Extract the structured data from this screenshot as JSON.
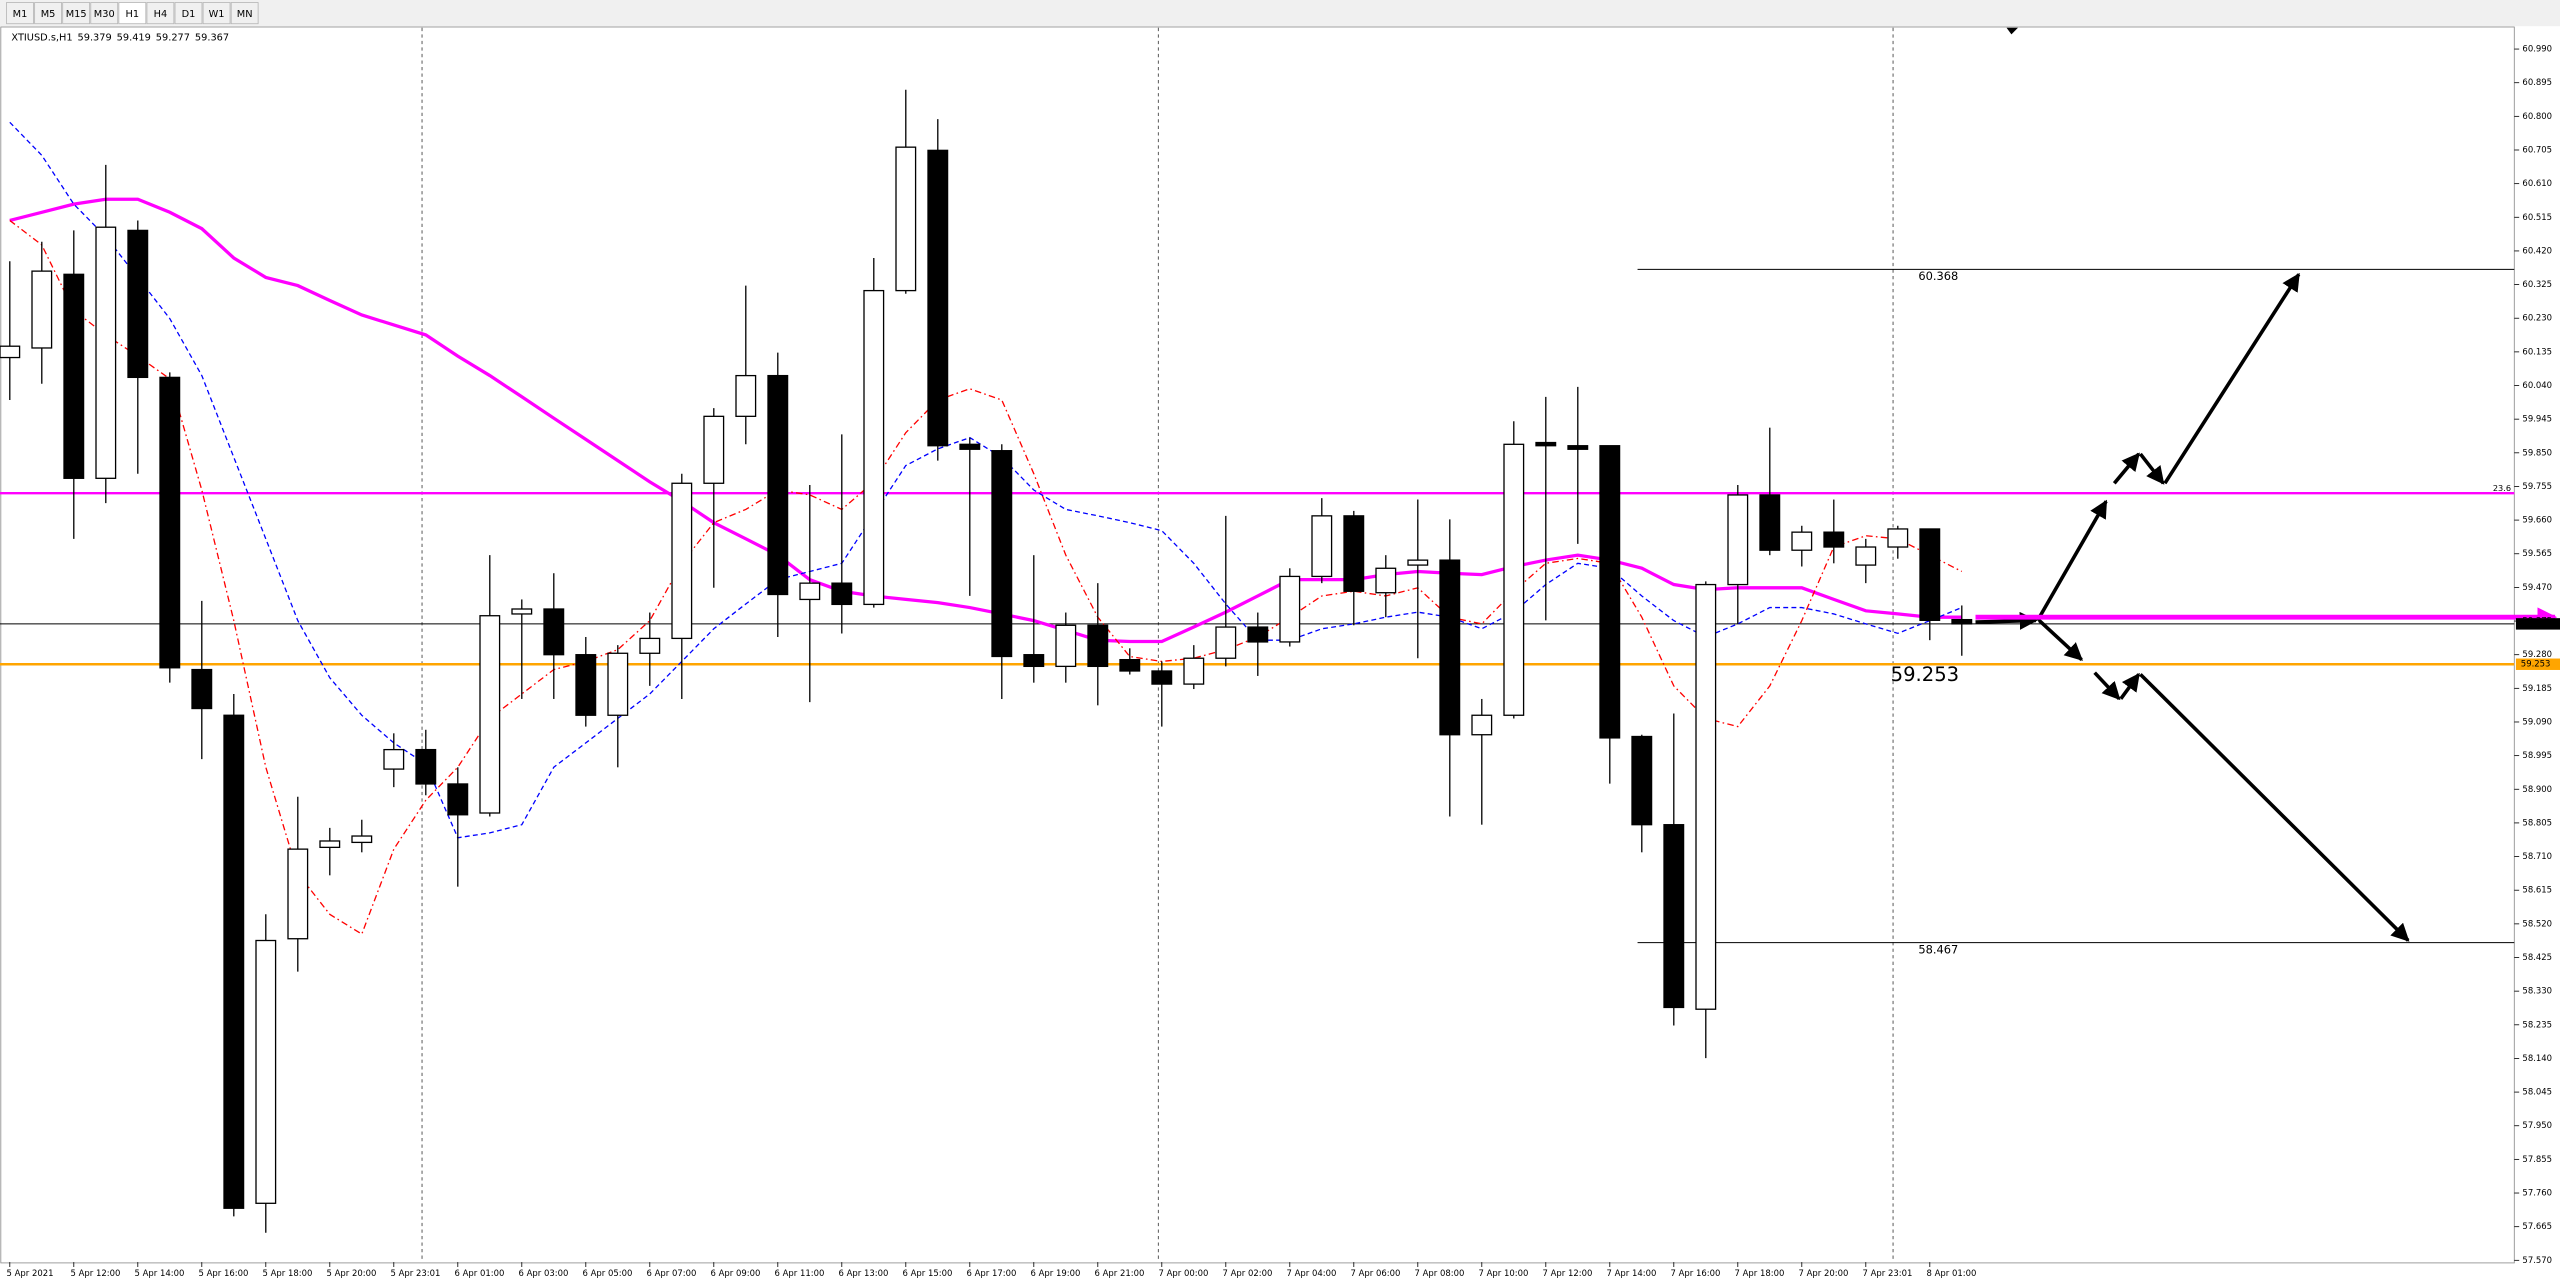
{
  "toolbar": {
    "timeframes": [
      "M1",
      "M5",
      "M15",
      "M30",
      "H1",
      "H4",
      "D1",
      "W1",
      "MN"
    ],
    "active": 4
  },
  "chart_data": {
    "type": "candlestick",
    "symbol": "XTIUSD.s,H1",
    "categories": [
      "5 Apr 2021",
      null,
      "5 Apr 12:00",
      null,
      "5 Apr 14:00",
      null,
      "5 Apr 16:00",
      null,
      "5 Apr 18:00",
      null,
      "5 Apr 20:00",
      null,
      "5 Apr 23:01",
      null,
      "6 Apr 01:00",
      null,
      "6 Apr 03:00",
      null,
      "6 Apr 05:00",
      null,
      "6 Apr 07:00",
      null,
      "6 Apr 09:00",
      null,
      "6 Apr 11:00",
      null,
      "6 Apr 13:00",
      null,
      "6 Apr 15:00",
      null,
      "6 Apr 17:00",
      null,
      "6 Apr 19:00",
      null,
      "6 Apr 21:00",
      null,
      "7 Apr 00:00",
      null,
      "7 Apr 02:00",
      null,
      "7 Apr 04:00",
      null,
      "7 Apr 06:00",
      null,
      "7 Apr 08:00",
      null,
      "7 Apr 10:00",
      null,
      "7 Apr 12:00",
      null,
      "7 Apr 14:00",
      null,
      "7 Apr 16:00",
      null,
      "7 Apr 18:00",
      null,
      "7 Apr 20:00",
      null,
      "7 Apr 23:01",
      null,
      "8 Apr 01:00",
      null
    ],
    "open": [
      60.119,
      60.146,
      60.354,
      59.778,
      60.478,
      60.063,
      59.238,
      59.109,
      57.731,
      58.478,
      58.736,
      58.75,
      58.957,
      59.012,
      58.915,
      58.833,
      59.395,
      59.409,
      59.28,
      59.109,
      59.284,
      59.326,
      59.764,
      59.953,
      60.068,
      59.436,
      59.482,
      59.422,
      60.308,
      60.704,
      59.874,
      59.856,
      59.28,
      59.247,
      59.363,
      59.266,
      59.234,
      59.197,
      59.27,
      59.358,
      59.316,
      59.501,
      59.672,
      59.455,
      59.533,
      59.547,
      59.054,
      59.109,
      59.879,
      59.87,
      59.87,
      59.049,
      58.8,
      58.279,
      59.478,
      59.731,
      59.575,
      59.626,
      59.533,
      59.584,
      59.635,
      59.379
    ],
    "high": [
      60.391,
      60.446,
      60.478,
      60.663,
      60.506,
      60.077,
      59.432,
      59.169,
      58.547,
      58.879,
      58.791,
      58.814,
      59.058,
      59.068,
      58.962,
      59.561,
      59.436,
      59.51,
      59.33,
      59.307,
      59.399,
      59.791,
      59.976,
      60.322,
      60.133,
      59.759,
      59.902,
      60.4,
      60.875,
      60.792,
      59.893,
      59.874,
      59.561,
      59.399,
      59.482,
      59.298,
      59.261,
      59.307,
      59.672,
      59.399,
      59.524,
      59.722,
      59.686,
      59.561,
      59.718,
      59.662,
      59.155,
      59.939,
      60.008,
      60.036,
      59.87,
      59.054,
      59.114,
      59.487,
      59.759,
      59.921,
      59.644,
      59.718,
      59.607,
      59.644,
      59.635,
      59.419
    ],
    "low": [
      59.999,
      60.045,
      59.607,
      59.708,
      59.791,
      59.201,
      58.985,
      57.694,
      57.648,
      58.385,
      58.657,
      58.722,
      58.906,
      58.883,
      58.625,
      58.823,
      59.155,
      59.155,
      59.077,
      58.962,
      59.192,
      59.155,
      59.469,
      59.874,
      59.33,
      59.146,
      59.34,
      59.413,
      60.299,
      59.828,
      59.446,
      59.155,
      59.201,
      59.201,
      59.137,
      59.224,
      59.077,
      59.183,
      59.247,
      59.22,
      59.303,
      59.482,
      59.363,
      59.386,
      59.27,
      58.823,
      58.8,
      59.1,
      59.377,
      59.593,
      58.916,
      58.722,
      58.233,
      58.141,
      59.367,
      59.561,
      59.529,
      59.538,
      59.482,
      59.551,
      59.321,
      59.277
    ],
    "close": [
      60.151,
      60.363,
      59.778,
      60.487,
      60.063,
      59.243,
      59.128,
      57.717,
      58.473,
      58.731,
      58.754,
      58.768,
      59.012,
      58.915,
      58.828,
      59.39,
      59.409,
      59.28,
      59.109,
      59.284,
      59.326,
      59.764,
      59.953,
      60.068,
      59.45,
      59.482,
      59.422,
      60.308,
      60.713,
      59.87,
      59.86,
      59.275,
      59.247,
      59.363,
      59.247,
      59.234,
      59.197,
      59.27,
      59.358,
      59.316,
      59.501,
      59.672,
      59.459,
      59.524,
      59.547,
      59.054,
      59.109,
      59.874,
      59.87,
      59.86,
      59.045,
      58.8,
      58.284,
      59.478,
      59.731,
      59.575,
      59.626,
      59.584,
      59.584,
      59.635,
      59.377,
      59.367
    ],
    "lines": [
      {
        "color": "#ff00ff",
        "width": 2,
        "dash": "none",
        "values": [
          60.506,
          60.529,
          60.552,
          60.566,
          60.566,
          60.529,
          60.483,
          60.4,
          60.345,
          60.322,
          60.28,
          60.239,
          60.211,
          60.183,
          60.123,
          60.068,
          60.008,
          59.948,
          59.888,
          59.828,
          59.768,
          59.713,
          59.653,
          59.607,
          59.561,
          59.492,
          59.459,
          59.446,
          59.436,
          59.427,
          59.413,
          59.395,
          59.376,
          59.349,
          59.321,
          59.317,
          59.317,
          59.358,
          59.4,
          59.446,
          59.492,
          59.492,
          59.492,
          59.506,
          59.515,
          59.51,
          59.506,
          59.529,
          59.547,
          59.561,
          59.547,
          59.524,
          59.478,
          59.464,
          59.469,
          59.469,
          59.469,
          59.436,
          59.404,
          59.395,
          59.386,
          59.386
        ]
      },
      {
        "color": "#ff0000",
        "width": 0.8,
        "dash": "4 2 1 2",
        "values": [
          60.506,
          60.437,
          60.252,
          60.183,
          60.123,
          60.059,
          59.745,
          59.376,
          58.962,
          58.662,
          58.547,
          58.491,
          58.731,
          58.869,
          58.962,
          59.1,
          59.169,
          59.238,
          59.261,
          59.294,
          59.376,
          59.538,
          59.653,
          59.69,
          59.745,
          59.731,
          59.69,
          59.768,
          59.907,
          59.999,
          60.031,
          59.999,
          59.791,
          59.561,
          59.386,
          59.275,
          59.261,
          59.27,
          59.294,
          59.33,
          59.386,
          59.446,
          59.459,
          59.446,
          59.469,
          59.386,
          59.367,
          59.459,
          59.538,
          59.552,
          59.538,
          59.386,
          59.192,
          59.1,
          59.077,
          59.192,
          59.376,
          59.584,
          59.616,
          59.607,
          59.561,
          59.515
        ]
      },
      {
        "color": "#0000ff",
        "width": 0.8,
        "dash": "3 2",
        "values": [
          60.783,
          60.69,
          60.552,
          60.46,
          60.345,
          60.229,
          60.068,
          59.837,
          59.607,
          59.376,
          59.215,
          59.109,
          59.031,
          58.971,
          58.763,
          58.777,
          58.8,
          58.962,
          59.031,
          59.1,
          59.169,
          59.261,
          59.353,
          59.423,
          59.492,
          59.515,
          59.538,
          59.676,
          59.814,
          59.861,
          59.893,
          59.837,
          59.745,
          59.69,
          59.672,
          59.653,
          59.63,
          59.538,
          59.423,
          59.321,
          59.321,
          59.353,
          59.367,
          59.386,
          59.4,
          59.386,
          59.353,
          59.4,
          59.478,
          59.538,
          59.524,
          59.446,
          59.376,
          59.33,
          59.367,
          59.413,
          59.413,
          59.395,
          59.367,
          59.34,
          59.376,
          59.413
        ]
      }
    ],
    "levels": [
      {
        "value": 59.736,
        "color": "#ff00ff",
        "kind": "line",
        "name": "23.6"
      },
      {
        "value": 59.367,
        "color": "#000000",
        "kind": "line",
        "axis_box": true
      },
      {
        "value": 59.253,
        "color": "#ffa500",
        "kind": "line",
        "axis_box": true,
        "text": "big"
      },
      {
        "value": 60.368,
        "color": "#000000",
        "kind": "segment",
        "text": "small"
      },
      {
        "value": 58.467,
        "color": "#000000",
        "kind": "segment",
        "text": "small"
      }
    ],
    "bull_color": "#ffffff",
    "bear_color": "#000000",
    "ylim": [
      57.565,
      61.05
    ],
    "yticks": [
      {
        "value": 60.99,
        "label": "60.990"
      },
      60.895,
      {
        "value": 60.8,
        "label": "60.800"
      },
      60.705,
      {
        "value": 60.61,
        "label": "60.610"
      },
      60.515,
      {
        "value": 60.42,
        "label": "60.420"
      },
      60.325,
      {
        "value": 60.23,
        "label": "60.230"
      },
      60.135,
      {
        "value": 60.04,
        "label": "60.040"
      },
      59.945,
      {
        "value": 59.85,
        "label": "59.850"
      },
      59.755,
      {
        "value": 59.66,
        "label": "59.660"
      },
      59.565,
      {
        "value": 59.47,
        "label": "59.470"
      },
      59.375,
      {
        "value": 59.28,
        "label": "59.280"
      },
      59.185,
      {
        "value": 59.09,
        "label": "59.090"
      },
      58.995,
      {
        "value": 58.9,
        "label": "58.900"
      },
      58.805,
      {
        "value": 58.71,
        "label": "58.710"
      },
      58.615,
      {
        "value": 58.52,
        "label": "58.520"
      },
      58.425,
      {
        "value": 58.33,
        "label": "58.330"
      },
      58.235,
      {
        "value": 58.14,
        "label": "58.140"
      },
      58.045,
      {
        "value": 57.95,
        "label": "57.950"
      },
      57.855,
      {
        "value": 57.76,
        "label": "57.760"
      },
      57.665,
      {
        "value": 57.57,
        "label": "57.570"
      }
    ]
  }
}
